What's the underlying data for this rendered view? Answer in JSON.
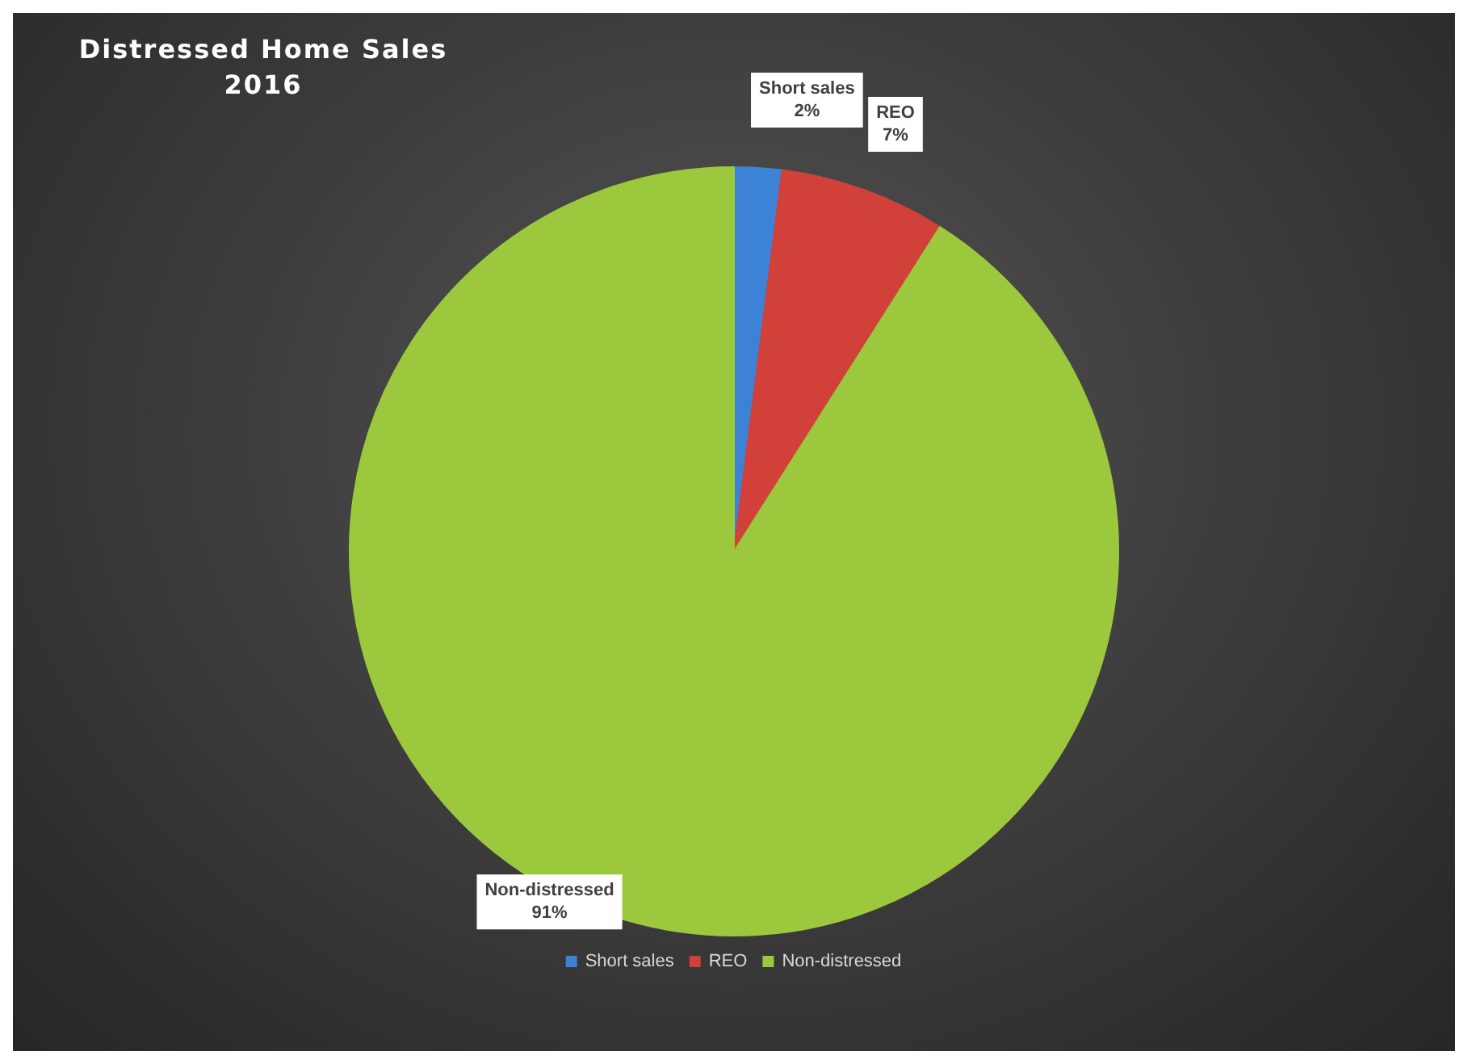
{
  "chart_data": {
    "type": "pie",
    "title": "Distressed Home Sales",
    "subtitle": "2016",
    "categories": [
      "Short sales",
      "REO",
      "Non-distressed"
    ],
    "values": [
      2,
      7,
      91
    ],
    "colors": [
      "#3c82d6",
      "#d2403a",
      "#9cc83e"
    ],
    "value_labels": [
      "2%",
      "7%",
      "91%"
    ],
    "legend": "bottom"
  }
}
